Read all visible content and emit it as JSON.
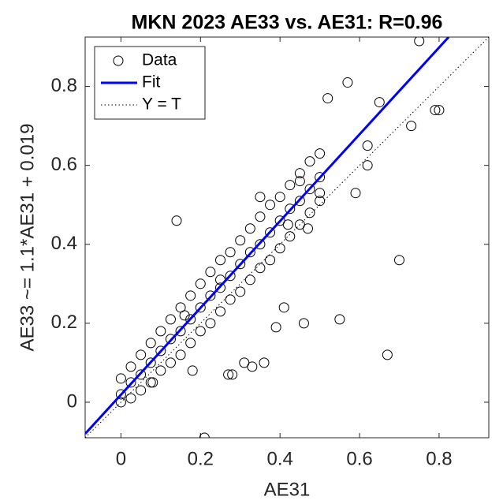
{
  "chart_data": {
    "type": "scatter",
    "title": "MKN 2023 AE33 vs. AE31: R=0.96",
    "xlabel": "AE31",
    "ylabel": "AE33 ~= 1.1*AE31 + 0.019",
    "xlim": [
      -0.09,
      0.925
    ],
    "ylim": [
      -0.09,
      0.925
    ],
    "xticks": [
      0,
      0.2,
      0.4,
      0.6,
      0.8
    ],
    "yticks": [
      0,
      0.2,
      0.4,
      0.6,
      0.8
    ],
    "legend": "top-left",
    "series": [
      {
        "name": "Data",
        "type": "scatter",
        "marker": "circle",
        "color": "#000000",
        "x": [
          0,
          0,
          0,
          0.025,
          0.025,
          0.025,
          0.05,
          0.05,
          0.05,
          0.075,
          0.075,
          0.075,
          0.1,
          0.1,
          0.1,
          0.125,
          0.125,
          0.125,
          0.15,
          0.15,
          0.15,
          0.175,
          0.175,
          0.175,
          0.2,
          0.2,
          0.2,
          0.225,
          0.225,
          0.225,
          0.25,
          0.25,
          0.25,
          0.275,
          0.275,
          0.275,
          0.3,
          0.3,
          0.3,
          0.325,
          0.325,
          0.325,
          0.35,
          0.35,
          0.35,
          0.375,
          0.375,
          0.375,
          0.4,
          0.4,
          0.4,
          0.425,
          0.425,
          0.425,
          0.45,
          0.45,
          0.45,
          0.475,
          0.475,
          0.475,
          0.5,
          0.5,
          0.5,
          0.14,
          0.21,
          0.75,
          0.57,
          0.8,
          0.79,
          0.7,
          0.67,
          0.46,
          0.55,
          0.41,
          0.39,
          0.36,
          0.31,
          0.33,
          0.27,
          0.28,
          0.73,
          0.65,
          0.52,
          0.59,
          0.42,
          0.47,
          0.35,
          0.45,
          0.62,
          0.62,
          0.5,
          0.16,
          0.25,
          0.18,
          0.08
        ],
        "values": [
          0.02,
          0.06,
          0,
          0.05,
          0.09,
          0.01,
          0.07,
          0.12,
          0.03,
          0.1,
          0.15,
          0.05,
          0.13,
          0.18,
          0.08,
          0.16,
          0.21,
          0.1,
          0.18,
          0.24,
          0.12,
          0.21,
          0.27,
          0.15,
          0.24,
          0.3,
          0.18,
          0.27,
          0.33,
          0.2,
          0.29,
          0.36,
          0.23,
          0.32,
          0.38,
          0.26,
          0.35,
          0.41,
          0.28,
          0.38,
          0.44,
          0.31,
          0.4,
          0.47,
          0.34,
          0.43,
          0.5,
          0.36,
          0.46,
          0.52,
          0.39,
          0.49,
          0.55,
          0.42,
          0.51,
          0.58,
          0.45,
          0.54,
          0.61,
          0.48,
          0.57,
          0.63,
          0.51,
          0.46,
          -0.09,
          0.915,
          0.81,
          0.74,
          0.74,
          0.36,
          0.12,
          0.2,
          0.21,
          0.24,
          0.19,
          0.1,
          0.1,
          0.09,
          0.07,
          0.07,
          0.7,
          0.76,
          0.77,
          0.53,
          0.45,
          0.44,
          0.52,
          0.56,
          0.6,
          0.65,
          0.53,
          0.22,
          0.31,
          0.08,
          0.05
        ]
      },
      {
        "name": "Fit",
        "type": "line",
        "color": "#0000ff",
        "linestyle": "solid",
        "x": [
          -0.09,
          0.824
        ],
        "values": [
          -0.08,
          0.925
        ]
      },
      {
        "name": "Y = T",
        "type": "line",
        "color": "#000000",
        "linestyle": "dotted",
        "x": [
          -0.09,
          0.925
        ],
        "values": [
          -0.09,
          0.925
        ]
      }
    ]
  }
}
